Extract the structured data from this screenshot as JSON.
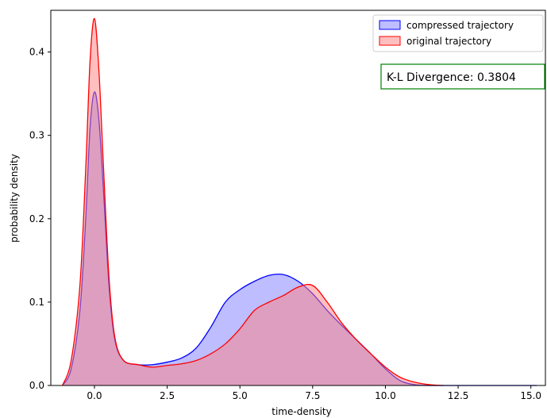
{
  "chart_data": {
    "type": "area",
    "xlabel": "time-density",
    "ylabel": "probability density",
    "xlim": [
      -1.5,
      15.5
    ],
    "ylim": [
      0,
      0.45
    ],
    "xticks": [
      0.0,
      2.5,
      5.0,
      7.5,
      10.0,
      12.5,
      15.0
    ],
    "xtick_labels": [
      "0.0",
      "2.5",
      "5.0",
      "7.5",
      "10.0",
      "12.5",
      "15.0"
    ],
    "yticks": [
      0.0,
      0.1,
      0.2,
      0.3,
      0.4
    ],
    "ytick_labels": [
      "0.0",
      "0.1",
      "0.2",
      "0.3",
      "0.4"
    ],
    "grid": false,
    "legend_position": "top-right",
    "annotation": "K-L Divergence: 0.3804",
    "series": [
      {
        "name": "compressed trajectory",
        "color": "#0000ff",
        "fill": "#7b7bff",
        "x": [
          -1.1,
          -0.8,
          -0.5,
          -0.3,
          -0.15,
          0.0,
          0.15,
          0.3,
          0.5,
          0.7,
          1.0,
          1.5,
          2.0,
          2.5,
          3.0,
          3.5,
          4.0,
          4.5,
          5.0,
          5.5,
          6.0,
          6.5,
          7.0,
          7.5,
          8.0,
          8.5,
          9.0,
          9.5,
          10.0,
          10.5,
          11.0,
          11.5,
          12.0,
          13.0,
          14.0,
          15.2
        ],
        "y": [
          0.0,
          0.02,
          0.09,
          0.2,
          0.31,
          0.352,
          0.32,
          0.24,
          0.12,
          0.055,
          0.03,
          0.025,
          0.025,
          0.028,
          0.033,
          0.045,
          0.07,
          0.1,
          0.115,
          0.125,
          0.132,
          0.133,
          0.125,
          0.11,
          0.09,
          0.072,
          0.055,
          0.038,
          0.02,
          0.006,
          0.001,
          0.0,
          0.0,
          0.0,
          0.0,
          0.0
        ]
      },
      {
        "name": "original trajectory",
        "color": "#ff0000",
        "fill": "#ff8080",
        "x": [
          -1.1,
          -0.8,
          -0.5,
          -0.3,
          -0.15,
          0.0,
          0.15,
          0.3,
          0.5,
          0.7,
          1.0,
          1.5,
          2.0,
          2.5,
          3.0,
          3.5,
          4.0,
          4.5,
          5.0,
          5.5,
          6.0,
          6.5,
          7.0,
          7.5,
          8.0,
          8.5,
          9.0,
          9.5,
          10.0,
          10.5,
          11.0,
          11.5,
          12.0
        ],
        "y": [
          0.0,
          0.03,
          0.12,
          0.26,
          0.39,
          0.44,
          0.38,
          0.27,
          0.13,
          0.058,
          0.03,
          0.025,
          0.022,
          0.024,
          0.026,
          0.03,
          0.038,
          0.05,
          0.068,
          0.09,
          0.1,
          0.108,
          0.118,
          0.12,
          0.1,
          0.075,
          0.055,
          0.038,
          0.022,
          0.01,
          0.004,
          0.001,
          0.0
        ]
      }
    ]
  }
}
